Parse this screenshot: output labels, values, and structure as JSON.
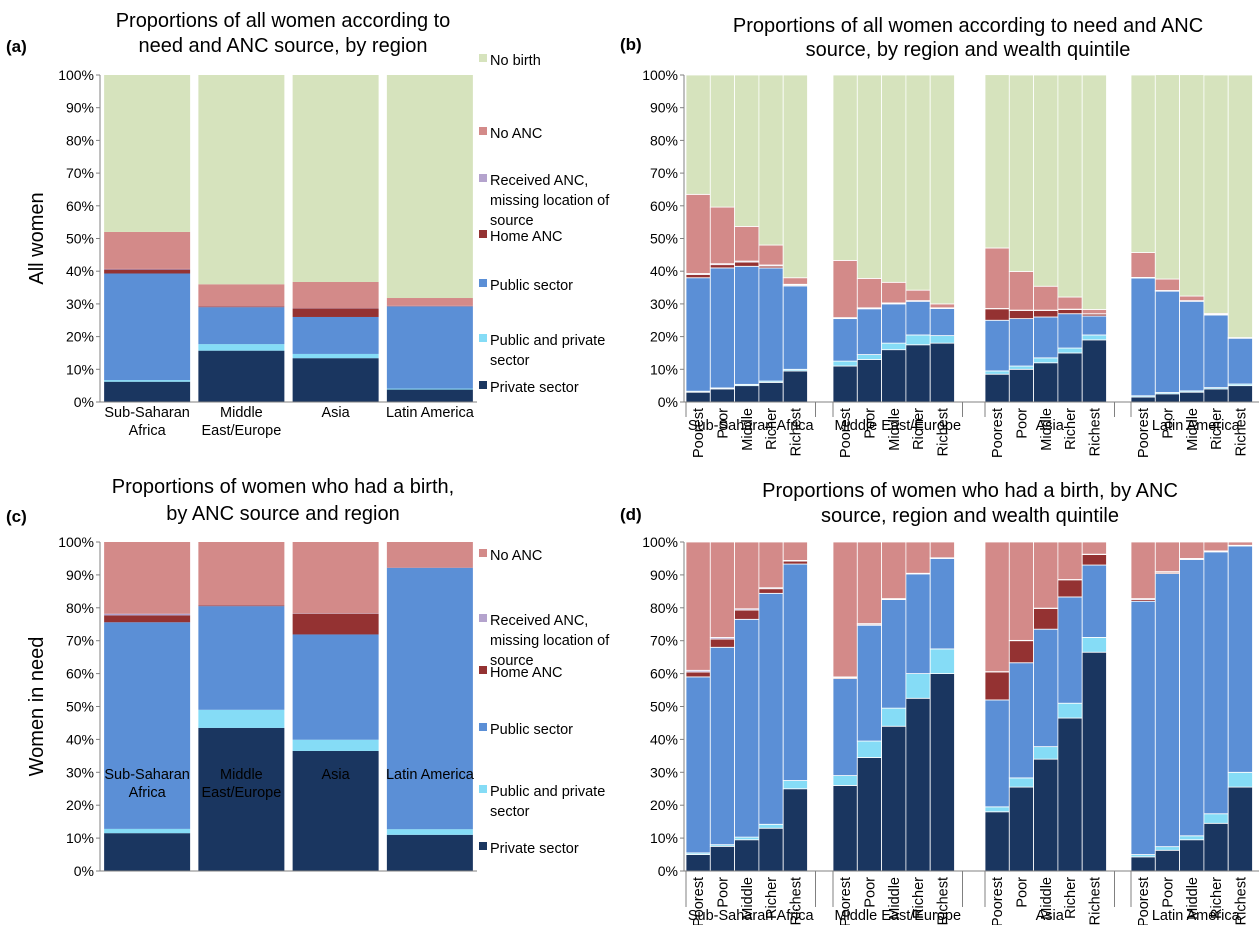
{
  "figure": {
    "row_labels": [
      "All women",
      "Women in need"
    ],
    "x_groups": [
      "Sub-Saharan Africa",
      "Middle East/Europe",
      "Asia",
      "Latin America"
    ],
    "x_groups_wrapped": [
      [
        "Sub-Saharan",
        "Africa"
      ],
      [
        "Middle",
        "East/Europe"
      ],
      [
        "Asia"
      ],
      [
        "Latin America"
      ]
    ],
    "quintiles": [
      "Poorest",
      "Poor",
      "Middle",
      "Richer",
      "Richest"
    ],
    "yticks": [
      "0%",
      "10%",
      "20%",
      "30%",
      "40%",
      "50%",
      "60%",
      "70%",
      "80%",
      "90%",
      "100%"
    ]
  },
  "colors": {
    "private": "#1a3660",
    "public_private": "#85dcf6",
    "public": "#5b8fd6",
    "home": "#943232",
    "missing": "#b4a3cd",
    "noanc": "#d38a89",
    "nobirth": "#d6e3bd"
  },
  "chart_data": [
    {
      "id": "a",
      "panel_label": "(a)",
      "type": "bar",
      "stacked": true,
      "title": [
        "Proportions of all women according to",
        "need and ANC source, by region"
      ],
      "ylabel": "All women",
      "ylim": [
        0,
        100
      ],
      "categories": [
        "Sub-Saharan Africa",
        "Middle East/Europe",
        "Asia",
        "Latin America"
      ],
      "legend": [
        "No birth",
        "No ANC",
        "Received ANC, missing location of source",
        "Home ANC",
        "Public sector",
        "Public and private sector",
        "Private sector"
      ],
      "legend_placement": "right",
      "series": [
        {
          "name": "Private sector",
          "values": [
            6.2,
            15.7,
            13.4,
            3.8
          ]
        },
        {
          "name": "Public and private sector",
          "values": [
            0.5,
            2.0,
            1.3,
            0.3
          ]
        },
        {
          "name": "Public sector",
          "values": [
            32.6,
            11.3,
            11.3,
            25.1
          ]
        },
        {
          "name": "Home ANC",
          "values": [
            1.2,
            0.2,
            2.6,
            0.1
          ]
        },
        {
          "name": "Received ANC, missing location of source",
          "values": [
            0.2,
            0.1,
            0.1,
            0.1
          ]
        },
        {
          "name": "No ANC",
          "values": [
            11.3,
            6.7,
            8.0,
            2.4
          ]
        },
        {
          "name": "No birth",
          "values": [
            48.0,
            64.0,
            63.3,
            68.2
          ]
        }
      ]
    },
    {
      "id": "b",
      "panel_label": "(b)",
      "type": "bar",
      "stacked": true,
      "title": [
        "Proportions of all women according to need and ANC",
        "source, by region and wealth quintile"
      ],
      "ylim": [
        0,
        100
      ],
      "groups": [
        "Sub-Saharan Africa",
        "Middle East/Europe",
        "Asia",
        "Latin America"
      ],
      "categories": [
        "Poorest",
        "Poor",
        "Middle",
        "Richer",
        "Richest"
      ],
      "series": [
        {
          "name": "Private sector",
          "values": [
            [
              3,
              4,
              5,
              6,
              9.5
            ],
            [
              11,
              13,
              16,
              17.5,
              18
            ],
            [
              8.5,
              10,
              12,
              15,
              19
            ],
            [
              1.5,
              2.5,
              3,
              4,
              5
            ]
          ]
        },
        {
          "name": "Public and private sector",
          "values": [
            [
              0.3,
              0.3,
              0.4,
              0.4,
              0.5
            ],
            [
              1.5,
              1.5,
              2,
              3,
              2.3
            ],
            [
              1,
              1,
              1.5,
              1.5,
              1.5
            ],
            [
              0.4,
              0.4,
              0.4,
              0.4,
              0.5
            ]
          ]
        },
        {
          "name": "Public sector",
          "values": [
            [
              34.7,
              36.7,
              36.1,
              34.6,
              25.5
            ],
            [
              13,
              14,
              12,
              10.3,
              8.3
            ],
            [
              15.5,
              14.5,
              12.5,
              10.5,
              5.8
            ],
            [
              36,
              31,
              27.4,
              22.2,
              14
            ]
          ]
        },
        {
          "name": "Home ANC",
          "values": [
            [
              1,
              1,
              1.3,
              0.6,
              0.3
            ],
            [
              0.2,
              0.2,
              0.2,
              0.1,
              0.1
            ],
            [
              3.5,
              2.5,
              2,
              1.3,
              0.6
            ],
            [
              0.1,
              0.1,
              0.1,
              0.1,
              0.05
            ]
          ]
        },
        {
          "name": "Received ANC, missing location of source",
          "values": [
            [
              0.3,
              0.3,
              0.3,
              0.3,
              0.2
            ],
            [
              0.1,
              0.1,
              0.1,
              0.1,
              0.1
            ],
            [
              0.1,
              0.1,
              0.1,
              0.1,
              0.1
            ],
            [
              0.1,
              0.1,
              0.1,
              0.1,
              0.05
            ]
          ]
        },
        {
          "name": "No ANC",
          "values": [
            [
              24.2,
              17.3,
              10.6,
              6.1,
              2
            ],
            [
              17.5,
              9,
              6.3,
              3.2,
              1.2
            ],
            [
              18.5,
              11.8,
              7.3,
              3.7,
              1.3
            ],
            [
              7.6,
              3.5,
              1.4,
              0.3,
              0.1
            ]
          ]
        },
        {
          "name": "No birth",
          "values": [
            [
              36.5,
              40.4,
              46.3,
              52,
              62
            ],
            [
              56.7,
              62.2,
              63.4,
              65.8,
              70
            ],
            [
              53,
              60.1,
              64.6,
              67.9,
              71.7
            ],
            [
              54.3,
              62.5,
              67.7,
              72.9,
              80.3
            ]
          ]
        }
      ]
    },
    {
      "id": "c",
      "panel_label": "(c)",
      "type": "bar",
      "stacked": true,
      "title": [
        "Proportions of women who had a birth,",
        "by ANC source and region"
      ],
      "ylabel": "Women in need",
      "ylim": [
        0,
        100
      ],
      "categories": [
        "Sub-Saharan Africa",
        "Middle East/Europe",
        "Asia",
        "Latin America"
      ],
      "legend": [
        "No ANC",
        "Received ANC, missing location of source",
        "Home ANC",
        "Public sector",
        "Public and private sector",
        "Private sector"
      ],
      "legend_placement": "right",
      "series": [
        {
          "name": "Private sector",
          "values": [
            11.5,
            43.5,
            36.5,
            11
          ]
        },
        {
          "name": "Public and private sector",
          "values": [
            1.3,
            5.5,
            3.4,
            1.7
          ]
        },
        {
          "name": "Public sector",
          "values": [
            62.8,
            31.5,
            32,
            79.4
          ]
        },
        {
          "name": "Home ANC",
          "values": [
            2.1,
            0.2,
            6.3,
            0.1
          ]
        },
        {
          "name": "Received ANC, missing location of source",
          "values": [
            0.5,
            0.1,
            0.1,
            0.1
          ]
        },
        {
          "name": "No ANC",
          "values": [
            21.8,
            19.2,
            21.7,
            7.7
          ]
        }
      ]
    },
    {
      "id": "d",
      "panel_label": "(d)",
      "type": "bar",
      "stacked": true,
      "title": [
        "Proportions of women who had a birth, by ANC",
        "source, region and wealth quintile"
      ],
      "ylim": [
        0,
        100
      ],
      "groups": [
        "Sub-Saharan Africa",
        "Middle East/Europe",
        "Asia",
        "Latin America"
      ],
      "categories": [
        "Poorest",
        "Poor",
        "Middle",
        "Richer",
        "Richest"
      ],
      "series": [
        {
          "name": "Private sector",
          "values": [
            [
              5,
              7.5,
              9.5,
              13,
              25
            ],
            [
              26,
              34.5,
              44,
              52.5,
              60
            ],
            [
              18,
              25.5,
              34,
              46.5,
              66.5
            ],
            [
              4.3,
              6.3,
              9.5,
              14.5,
              25.5
            ]
          ]
        },
        {
          "name": "Public and private sector",
          "values": [
            [
              0.5,
              0.5,
              0.8,
              1.2,
              2.5
            ],
            [
              3,
              5,
              5.5,
              7.5,
              7.5
            ],
            [
              1.5,
              2.8,
              3.8,
              4.5,
              4.5
            ],
            [
              0.7,
              1.1,
              1.2,
              2.9,
              4.5
            ]
          ]
        },
        {
          "name": "Public sector",
          "values": [
            [
              53.5,
              60,
              66.2,
              70.2,
              65.8
            ],
            [
              29.5,
              35.2,
              33,
              30.3,
              27.5
            ],
            [
              32.5,
              35,
              35.7,
              32.3,
              22
            ],
            [
              77,
              83,
              84,
              79.6,
              68.8
            ]
          ]
        },
        {
          "name": "Home ANC",
          "values": [
            [
              1.5,
              2.5,
              2.8,
              1.4,
              0.9
            ],
            [
              0.3,
              0.3,
              0.2,
              0.1,
              0.1
            ],
            [
              8.5,
              6.7,
              6.3,
              5.2,
              3.2
            ],
            [
              0.5,
              0.4,
              0.2,
              0.2,
              0.1
            ]
          ]
        },
        {
          "name": "Received ANC, missing location of source",
          "values": [
            [
              0.5,
              0.5,
              0.4,
              0.3,
              0.2
            ],
            [
              0.2,
              0.2,
              0.1,
              0.1,
              0.1
            ],
            [
              0.1,
              0.1,
              0.1,
              0.1,
              0.1
            ],
            [
              0.3,
              0.2,
              0.1,
              0.1,
              0.1
            ]
          ]
        },
        {
          "name": "No ANC",
          "values": [
            [
              39,
              29,
              20.3,
              13.9,
              5.6
            ],
            [
              41,
              24.8,
              17.2,
              9.5,
              4.8
            ],
            [
              39.4,
              29.9,
              20.1,
              11.4,
              3.7
            ],
            [
              17.2,
              9,
              5,
              2.7,
              1
            ]
          ]
        }
      ]
    }
  ]
}
